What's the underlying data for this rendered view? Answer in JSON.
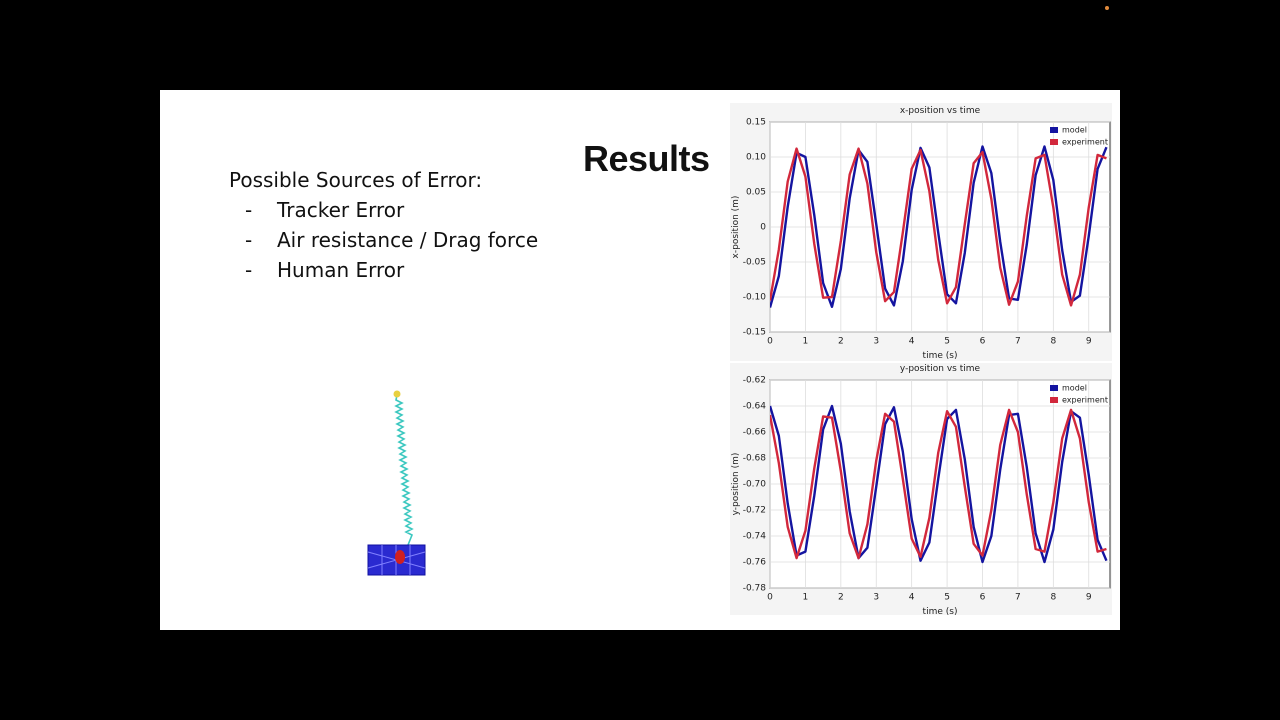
{
  "slide": {
    "title": "Results",
    "errors_heading": "Possible Sources of Error:",
    "errors": [
      "Tracker Error",
      "Air resistance / Drag force",
      "Human Error"
    ]
  },
  "chart_data": [
    {
      "type": "line",
      "title": "x-position vs time",
      "x_label": "time (s)",
      "y_label": "x-position (m)",
      "x": [
        0,
        0.25,
        0.5,
        0.75,
        1,
        1.25,
        1.5,
        1.75,
        2,
        2.25,
        2.5,
        2.75,
        3,
        3.25,
        3.5,
        3.75,
        4,
        4.25,
        4.5,
        4.75,
        5,
        5.25,
        5.5,
        5.75,
        6,
        6.25,
        6.5,
        6.75,
        7,
        7.25,
        7.5,
        7.75,
        8,
        8.25,
        8.5,
        8.75,
        9,
        9.25,
        9.5
      ],
      "series": [
        {
          "name": "model",
          "color": "#1414a0",
          "values": [
            -0.115,
            -0.07,
            0.029,
            0.106,
            0.1,
            0.017,
            -0.08,
            -0.114,
            -0.06,
            0.041,
            0.11,
            0.093,
            0.004,
            -0.088,
            -0.112,
            -0.049,
            0.053,
            0.113,
            0.085,
            -0.008,
            -0.096,
            -0.109,
            -0.037,
            0.063,
            0.115,
            0.077,
            -0.021,
            -0.102,
            -0.104,
            -0.025,
            0.074,
            0.115,
            0.067,
            -0.033,
            -0.107,
            -0.098,
            -0.013,
            0.083,
            0.114
          ]
        },
        {
          "name": "experiment",
          "color": "#d2283c",
          "values": [
            -0.105,
            -0.032,
            0.065,
            0.112,
            0.072,
            -0.024,
            -0.101,
            -0.1,
            -0.02,
            0.075,
            0.112,
            0.062,
            -0.036,
            -0.106,
            -0.093,
            -0.008,
            0.083,
            0.11,
            0.051,
            -0.047,
            -0.109,
            -0.086,
            0.004,
            0.091,
            0.107,
            0.04,
            -0.058,
            -0.111,
            -0.078,
            0.016,
            0.098,
            0.103,
            0.028,
            -0.068,
            -0.112,
            -0.068,
            0.028,
            0.103,
            0.098
          ]
        }
      ],
      "xlim": [
        0,
        9.6
      ],
      "ylim": [
        -0.15,
        0.15
      ],
      "xticks": [
        0,
        1,
        2,
        3,
        4,
        5,
        6,
        7,
        8,
        9
      ],
      "yticks": [
        -0.15,
        {
          "value": -0.1,
          "label": "-0.10"
        },
        -0.05,
        0,
        0.05,
        {
          "value": 0.1,
          "label": "0.10"
        },
        0.15
      ],
      "grid": true,
      "legend": "upper right"
    },
    {
      "type": "line",
      "title": "y-position vs time",
      "x_label": "time (s)",
      "y_label": "y-position (m)",
      "x": [
        0,
        0.25,
        0.5,
        0.75,
        1,
        1.25,
        1.5,
        1.75,
        2,
        2.25,
        2.5,
        2.75,
        3,
        3.25,
        3.5,
        3.75,
        4,
        4.25,
        4.5,
        4.75,
        5,
        5.25,
        5.5,
        5.75,
        6,
        6.25,
        6.5,
        6.75,
        7,
        7.25,
        7.5,
        7.75,
        8,
        8.25,
        8.5,
        8.75,
        9,
        9.25,
        9.5
      ],
      "series": [
        {
          "name": "model",
          "color": "#1414a0",
          "values": [
            -0.64,
            -0.663,
            -0.715,
            -0.755,
            -0.752,
            -0.709,
            -0.658,
            -0.64,
            -0.669,
            -0.721,
            -0.757,
            -0.749,
            -0.702,
            -0.654,
            -0.641,
            -0.675,
            -0.727,
            -0.759,
            -0.745,
            -0.696,
            -0.65,
            -0.643,
            -0.681,
            -0.733,
            -0.76,
            -0.74,
            -0.689,
            -0.647,
            -0.646,
            -0.687,
            -0.738,
            -0.76,
            -0.735,
            -0.683,
            -0.644,
            -0.649,
            -0.693,
            -0.743,
            -0.759
          ]
        },
        {
          "name": "experiment",
          "color": "#d2283c",
          "values": [
            -0.647,
            -0.684,
            -0.733,
            -0.757,
            -0.736,
            -0.688,
            -0.648,
            -0.649,
            -0.69,
            -0.738,
            -0.757,
            -0.731,
            -0.682,
            -0.646,
            -0.652,
            -0.696,
            -0.742,
            -0.756,
            -0.726,
            -0.676,
            -0.644,
            -0.656,
            -0.702,
            -0.746,
            -0.755,
            -0.72,
            -0.67,
            -0.643,
            -0.66,
            -0.708,
            -0.75,
            -0.752,
            -0.714,
            -0.665,
            -0.643,
            -0.665,
            -0.714,
            -0.752,
            -0.75
          ]
        }
      ],
      "xlim": [
        0,
        9.6
      ],
      "ylim": [
        -0.78,
        -0.62
      ],
      "xticks": [
        0,
        1,
        2,
        3,
        4,
        5,
        6,
        7,
        8,
        9
      ],
      "yticks": [
        -0.78,
        -0.76,
        -0.74,
        -0.72,
        {
          "value": -0.7,
          "label": "-0.70"
        },
        -0.68,
        -0.66,
        -0.64,
        -0.62
      ],
      "grid": true,
      "legend": "upper right"
    }
  ]
}
